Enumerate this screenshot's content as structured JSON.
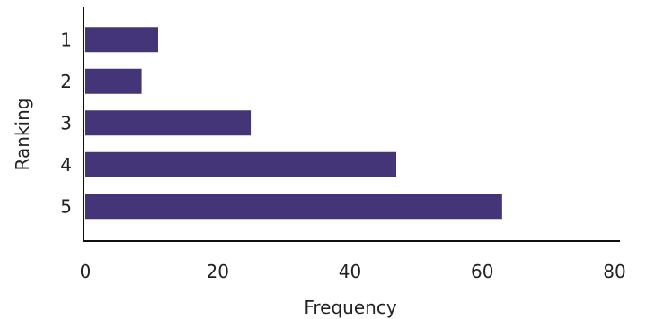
{
  "chart_data": {
    "type": "bar",
    "orientation": "horizontal",
    "categories": [
      "1",
      "2",
      "3",
      "4",
      "5"
    ],
    "values": [
      11,
      8.5,
      25,
      47,
      63
    ],
    "xlabel": "Frequency",
    "ylabel": "Ranking",
    "xlim": [
      0,
      80
    ],
    "xticks": [
      "0",
      "20",
      "40",
      "60",
      "80"
    ],
    "grid": false,
    "bar_color": "#433577",
    "axis_color": "#111111"
  }
}
